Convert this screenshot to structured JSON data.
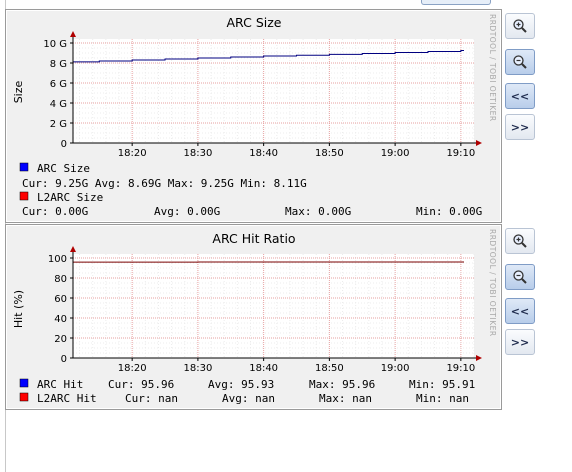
{
  "colors": {
    "arc": "#0000ff",
    "l2arc": "#ff0000",
    "hit_line": "#7a0000",
    "arc_line": "#000080"
  },
  "side_label": "RRDTOOL / TOBI OETIKER",
  "buttons": {
    "zoom_in": "zoom-in-icon",
    "zoom_out": "zoom-out-icon",
    "back": "<<",
    "forward": ">>"
  },
  "chart_data": [
    {
      "type": "line",
      "title": "ARC Size",
      "ylabel": "Size",
      "xlabel": "",
      "ylim": [
        0,
        10
      ],
      "yticks": [
        0,
        2,
        4,
        6,
        8,
        10
      ],
      "ytick_labels": [
        "0",
        "2 G",
        "4 G",
        "6 G",
        "8 G",
        "10 G"
      ],
      "xlim": [
        "18:11",
        "19:12"
      ],
      "xticks": [
        "18:20",
        "18:30",
        "18:40",
        "18:50",
        "19:00",
        "19:10"
      ],
      "grid": true,
      "x": [
        "18:11",
        "18:15",
        "18:20",
        "18:25",
        "18:30",
        "18:35",
        "18:40",
        "18:45",
        "18:50",
        "18:55",
        "19:00",
        "19:05",
        "19:10"
      ],
      "series": [
        {
          "name": "ARC Size",
          "color": "#000080",
          "values": [
            8.11,
            8.2,
            8.3,
            8.4,
            8.5,
            8.6,
            8.7,
            8.78,
            8.86,
            8.95,
            9.05,
            9.15,
            9.25
          ]
        },
        {
          "name": "L2ARC Size",
          "color": "#ff0000",
          "values": [
            0,
            0,
            0,
            0,
            0,
            0,
            0,
            0,
            0,
            0,
            0,
            0,
            0
          ]
        }
      ],
      "legend": [
        {
          "name": "ARC Size",
          "color": "#0000ff",
          "stats_line": "Cur: 9.25G  Avg: 8.69G  Max: 9.25G  Min: 8.11G"
        },
        {
          "name": "L2ARC Size",
          "color": "#ff0000",
          "stats": {
            "cur": "Cur: 0.00G",
            "avg": "Avg: 0.00G",
            "max": "Max: 0.00G",
            "min": "Min: 0.00G"
          }
        }
      ]
    },
    {
      "type": "line",
      "title": "ARC Hit Ratio",
      "ylabel": "Hit (%)",
      "xlabel": "",
      "ylim": [
        0,
        100
      ],
      "yticks": [
        0,
        20,
        40,
        60,
        80,
        100
      ],
      "ytick_labels": [
        "0",
        "20",
        "40",
        "60",
        "80",
        "100"
      ],
      "xlim": [
        "18:11",
        "19:12"
      ],
      "xticks": [
        "18:20",
        "18:30",
        "18:40",
        "18:50",
        "19:00",
        "19:10"
      ],
      "grid": true,
      "x": [
        "18:11",
        "18:20",
        "18:30",
        "18:40",
        "18:50",
        "19:00",
        "19:10"
      ],
      "series": [
        {
          "name": "ARC Hit",
          "color": "#7a0000",
          "values": [
            95.91,
            95.93,
            95.94,
            95.95,
            95.95,
            95.96,
            95.96
          ]
        }
      ],
      "legend": [
        {
          "name": "ARC Hit",
          "color": "#0000ff",
          "stats": {
            "cur": "Cur: 95.96",
            "avg": "Avg: 95.93",
            "max": "Max: 95.96",
            "min": "Min: 95.91"
          }
        },
        {
          "name": "L2ARC Hit",
          "color": "#ff0000",
          "stats": {
            "cur": "Cur:  nan",
            "avg": "Avg:  nan",
            "max": "Max:  nan",
            "min": "Min:  nan"
          }
        }
      ]
    }
  ]
}
